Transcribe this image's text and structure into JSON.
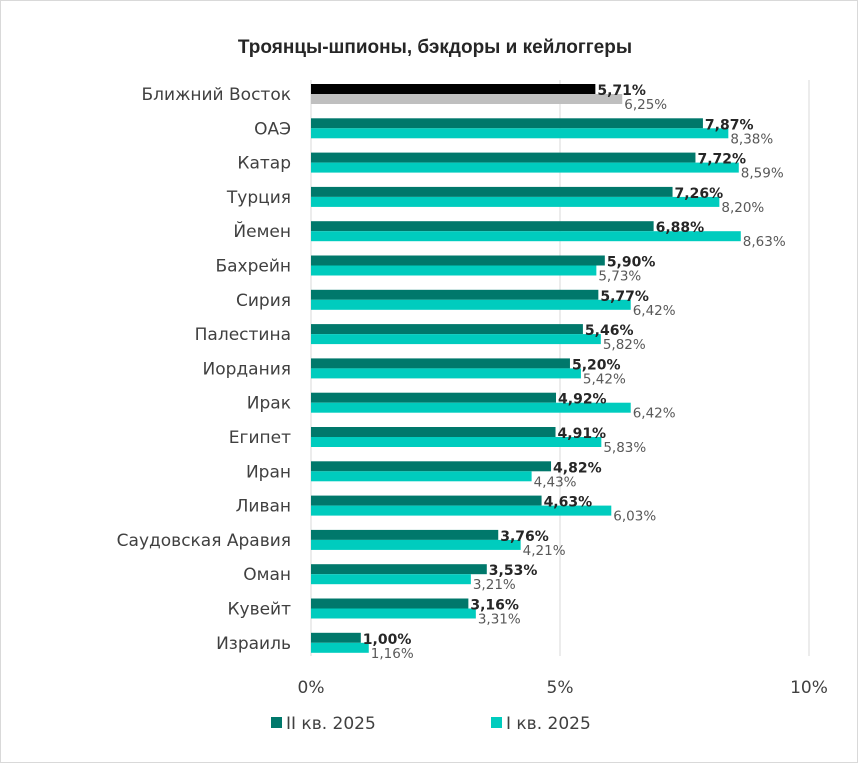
{
  "chart_data": {
    "type": "bar",
    "orientation": "horizontal",
    "title": "Троянцы-шпионы, бэкдоры и кейлоггеры",
    "categories": [
      "Ближний Восток",
      "ОАЭ",
      "Катар",
      "Турция",
      "Йемен",
      "Бахрейн",
      "Сирия",
      "Палестина",
      "Иордания",
      "Ирак",
      "Египет",
      "Иран",
      "Ливан",
      "Саудовская Аравия",
      "Оман",
      "Кувейт",
      "Израиль"
    ],
    "series": [
      {
        "name": "II кв. 2025",
        "color": "#00786b",
        "highlight_color": "#000000",
        "values": [
          5.71,
          7.87,
          7.72,
          7.26,
          6.88,
          5.9,
          5.77,
          5.46,
          5.2,
          4.92,
          4.91,
          4.82,
          4.63,
          3.76,
          3.53,
          3.16,
          1.0
        ],
        "labels": [
          "5,71%",
          "7,87%",
          "7,72%",
          "7,26%",
          "6,88%",
          "5,90%",
          "5,77%",
          "5,46%",
          "5,20%",
          "4,92%",
          "4,91%",
          "4,82%",
          "4,63%",
          "3,76%",
          "3,53%",
          "3,16%",
          "1,00%"
        ]
      },
      {
        "name": "I кв. 2025",
        "color": "#00ccbe",
        "highlight_color": "#bfbfbf",
        "values": [
          6.25,
          8.38,
          8.59,
          8.2,
          8.63,
          5.73,
          6.42,
          5.82,
          5.42,
          6.42,
          5.83,
          4.43,
          6.03,
          4.21,
          3.21,
          3.31,
          1.16
        ],
        "labels": [
          "6,25%",
          "8,38%",
          "8,59%",
          "8,20%",
          "8,63%",
          "5,73%",
          "6,42%",
          "5,82%",
          "5,42%",
          "6,42%",
          "5,83%",
          "4,43%",
          "6,03%",
          "4,21%",
          "3,21%",
          "3,31%",
          "1,16%"
        ]
      }
    ],
    "xlim": [
      0,
      10
    ],
    "x_ticks": [
      {
        "value": 0,
        "label": "0%"
      },
      {
        "value": 5,
        "label": "5%"
      },
      {
        "value": 10,
        "label": "10%"
      }
    ],
    "grid": true,
    "legend_position": "bottom",
    "xlabel": "",
    "ylabel": ""
  }
}
